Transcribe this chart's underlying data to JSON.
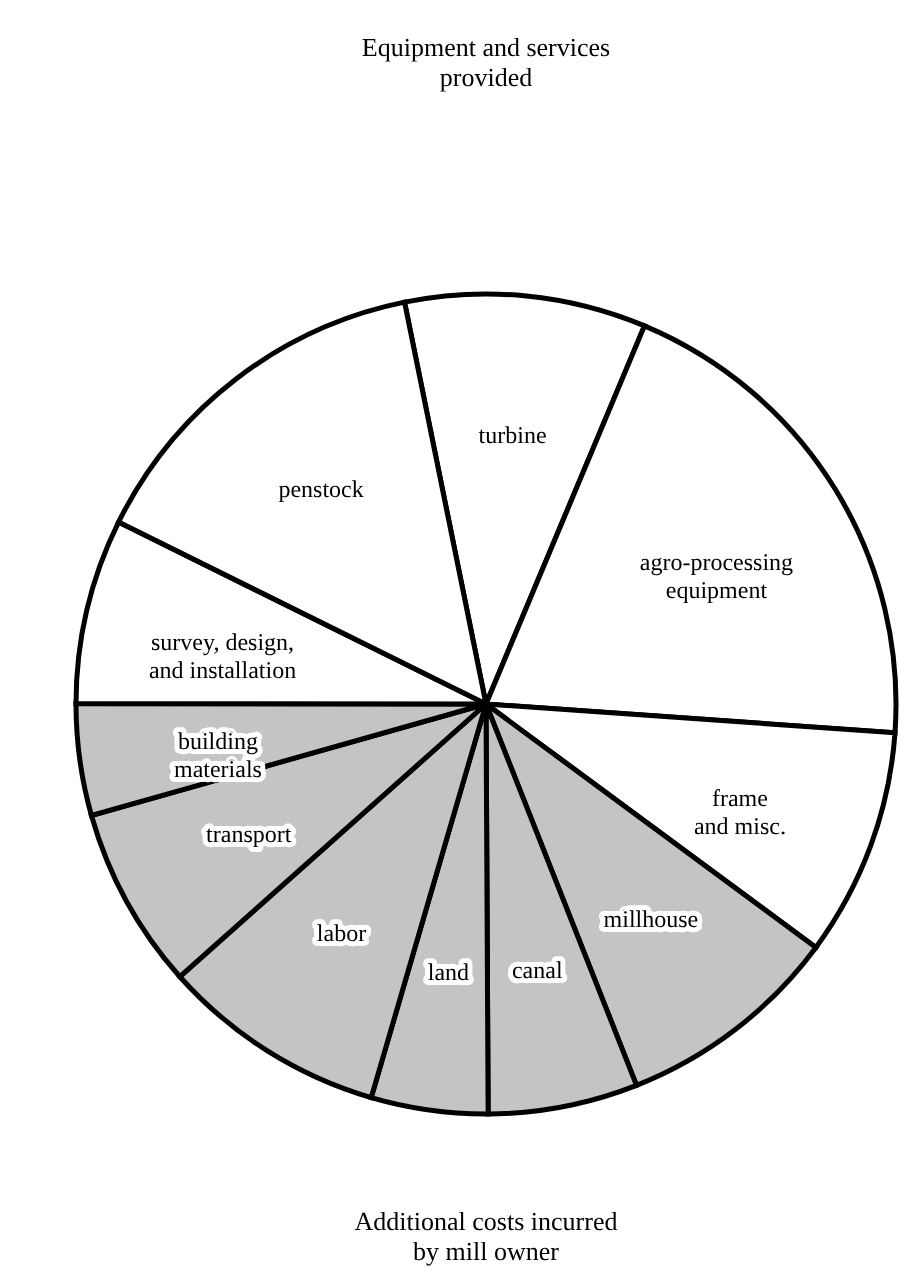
{
  "chart_data": {
    "type": "pie",
    "categories": [
      "turbine",
      "agro-processing\nequipment",
      "frame\nand misc.",
      "millhouse",
      "canal",
      "land",
      "labor",
      "transport",
      "building\nmaterials",
      "survey, design,\nand installation",
      "penstock"
    ],
    "values": [
      9.5,
      19.8,
      9.0,
      8.9,
      5.9,
      4.6,
      8.9,
      7.2,
      4.4,
      7.3,
      14.5
    ],
    "colors": [
      "#ffffff",
      "#ffffff",
      "#ffffff",
      "#c4c4c4",
      "#c4c4c4",
      "#c4c4c4",
      "#c4c4c4",
      "#c4c4c4",
      "#c4c4c4",
      "#ffffff",
      "#ffffff"
    ],
    "annotations": [
      "Equipment and services\nprovided",
      "Additional costs incurred\nby mill owner"
    ]
  }
}
